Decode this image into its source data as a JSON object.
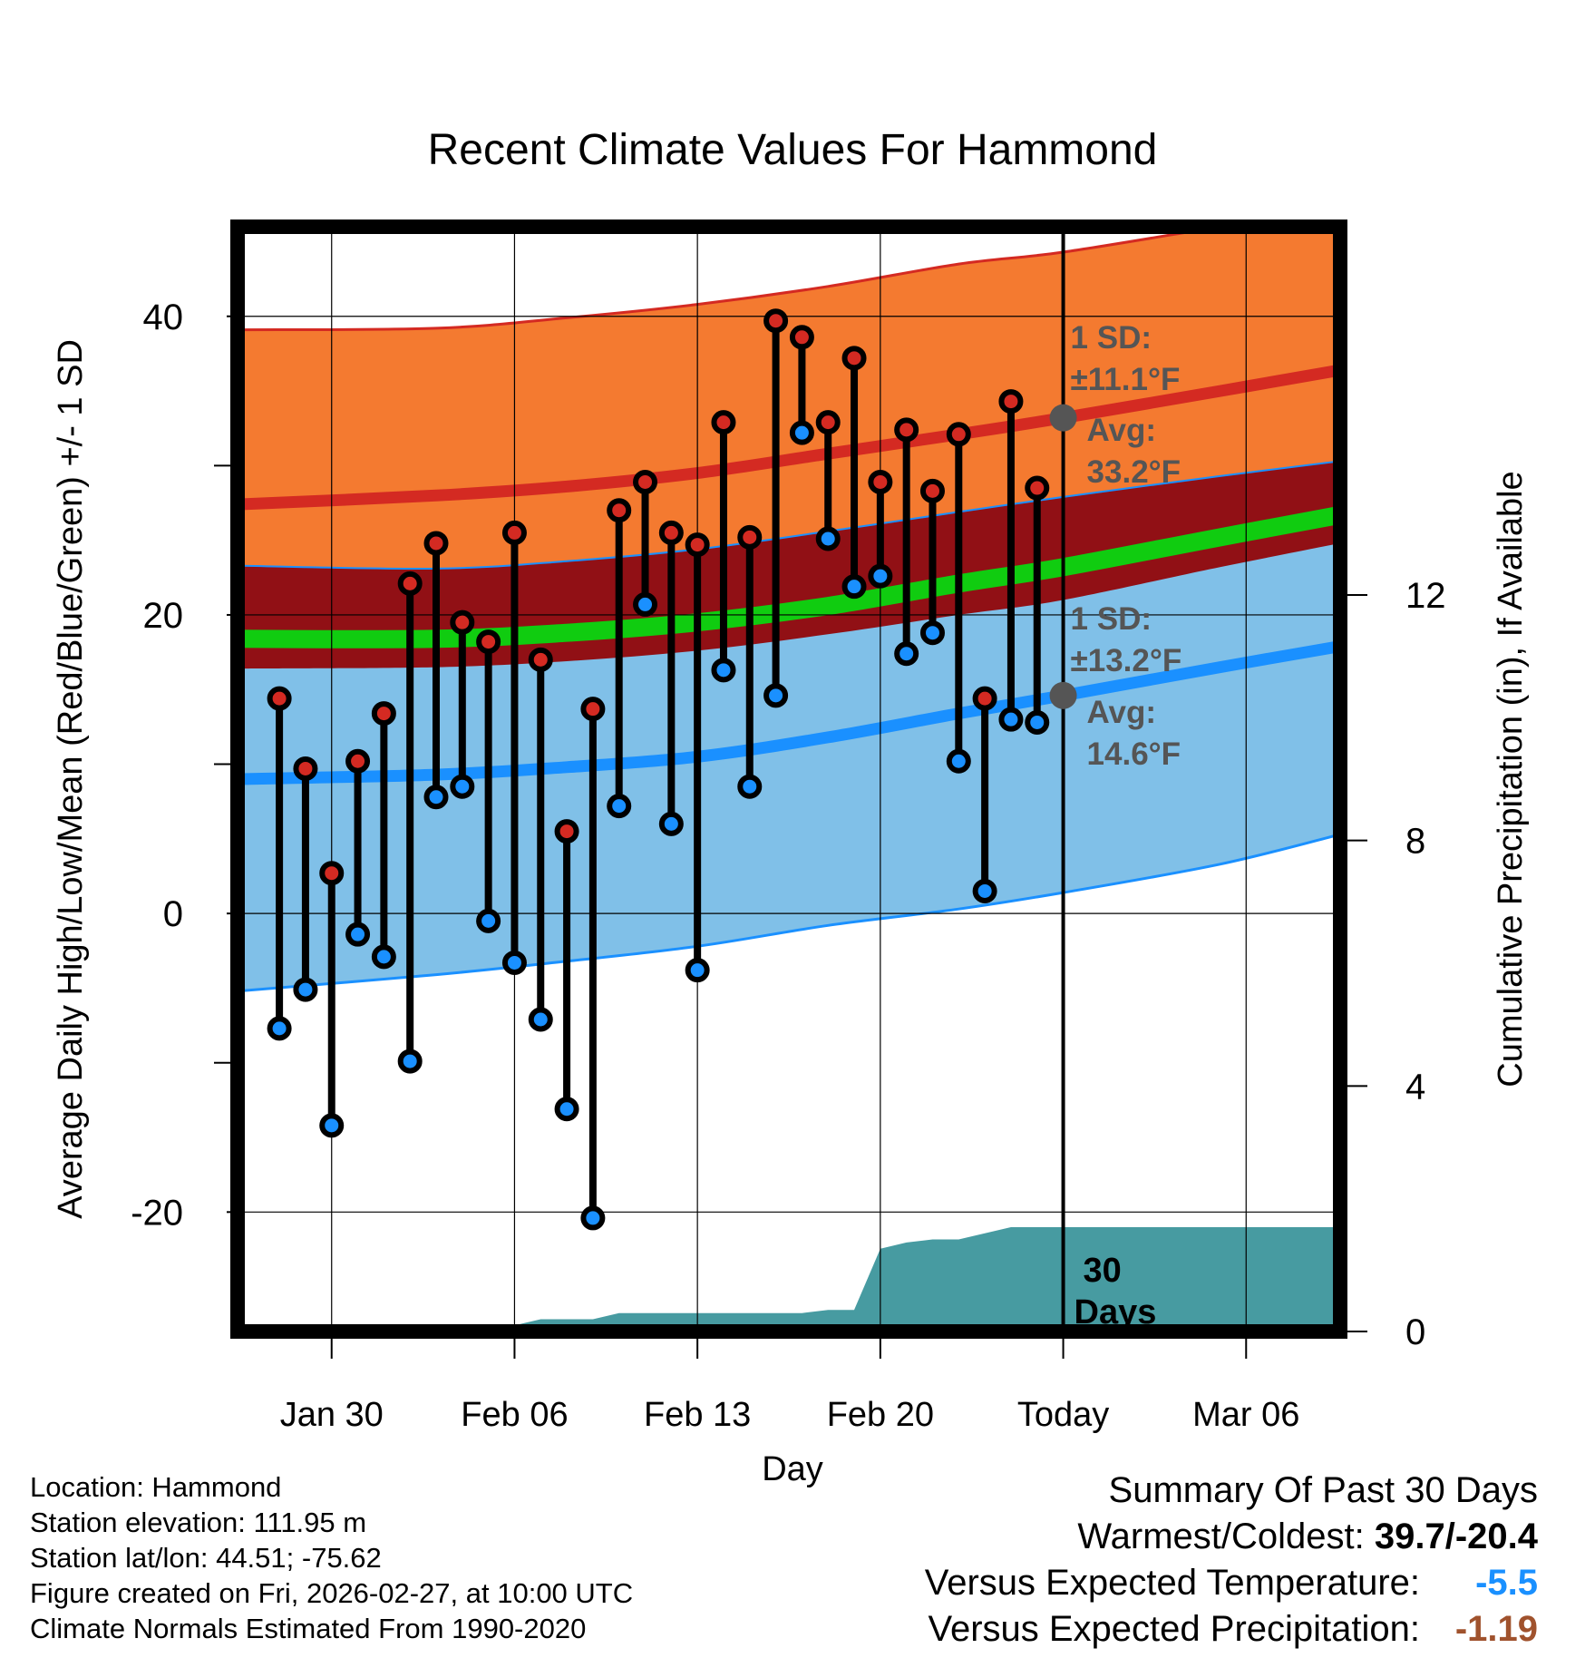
{
  "colors": {
    "orange_band": "#f47a30",
    "mean_band": "#911015",
    "green_line": "#10cc10",
    "blue_band": "#80c0e8",
    "blue_line": "#1a90ff",
    "red_line": "#d42a22",
    "precip_fill": "#479ba1",
    "marker_red": "#d42a22",
    "marker_blue": "#1a90ff",
    "annotation_gray": "#555555",
    "warm_value": "#1a90ff",
    "precip_value": "#a0522d"
  },
  "chart_data": {
    "type": "line",
    "title": "Recent Climate Values For Hammond",
    "xlabel": "Day",
    "ylabel": "Average Daily High/Low/Mean (Red/Blue/Green) +/- 1 SD",
    "y2label": "Cumulative Precipitation (in), If Available",
    "xlim": [
      -2.6,
      39.6
    ],
    "ylim": [
      -28,
      46
    ],
    "y2lim": [
      0,
      18
    ],
    "x_ticks": [
      {
        "x": 1,
        "label": "Jan 30"
      },
      {
        "x": 8,
        "label": "Feb 06"
      },
      {
        "x": 15,
        "label": "Feb 13"
      },
      {
        "x": 22,
        "label": "Feb 20"
      },
      {
        "x": 29,
        "label": "Today"
      },
      {
        "x": 36,
        "label": "Mar 06"
      }
    ],
    "y_ticks": [
      {
        "y": 40,
        "label": "40"
      },
      {
        "y": 20,
        "label": "20"
      },
      {
        "y": 0,
        "label": "0"
      },
      {
        "y": -20,
        "label": "-20"
      }
    ],
    "y_minor_ticks": [
      30,
      10,
      -10
    ],
    "y2_ticks": [
      {
        "y": 0,
        "label": "0"
      },
      {
        "y": 4,
        "label": "4"
      },
      {
        "y": 8,
        "label": "8"
      },
      {
        "y": 12,
        "label": "12"
      }
    ],
    "today_x": 29,
    "normals": {
      "x": [
        -2.6,
        5,
        10,
        15,
        20,
        25,
        29,
        35,
        39.6
      ],
      "high_plus_sd": [
        39.1,
        39.2,
        39.9,
        40.8,
        42.0,
        43.5,
        44.3,
        46.0,
        47.3
      ],
      "high_avg": [
        27.4,
        28.0,
        28.6,
        29.5,
        30.8,
        32.1,
        33.2,
        35.0,
        36.4
      ],
      "mean_upper": [
        23.3,
        23.1,
        23.6,
        24.4,
        25.6,
        26.9,
        27.9,
        29.3,
        30.3
      ],
      "mean_avg": [
        18.4,
        18.4,
        18.8,
        19.5,
        20.6,
        22.1,
        23.2,
        25.2,
        26.7
      ],
      "mean_lower": [
        16.4,
        16.5,
        16.9,
        17.6,
        18.7,
        20.0,
        21.0,
        23.2,
        24.8
      ],
      "low_avg": [
        9.0,
        9.3,
        9.8,
        10.5,
        11.8,
        13.4,
        14.6,
        16.5,
        17.9
      ],
      "low_minus_sd": [
        -5.2,
        -4.1,
        -3.2,
        -2.2,
        -0.8,
        0.3,
        1.4,
        3.3,
        5.3
      ]
    },
    "daily": {
      "x": [
        -1,
        0,
        1,
        2,
        3,
        4,
        5,
        6,
        7,
        8,
        9,
        10,
        11,
        12,
        13,
        14,
        15,
        16,
        17,
        18,
        19,
        20,
        21,
        22,
        23,
        24,
        25,
        26,
        27,
        28
      ],
      "high": [
        14.4,
        9.7,
        2.7,
        10.2,
        13.4,
        22.1,
        24.8,
        19.5,
        18.2,
        25.5,
        17.0,
        5.5,
        13.7,
        27.0,
        28.9,
        25.5,
        24.7,
        32.9,
        25.2,
        39.7,
        38.6,
        32.9,
        37.2,
        28.9,
        32.4,
        28.3,
        32.1,
        14.4,
        34.3,
        28.5
      ],
      "low": [
        -7.7,
        -5.1,
        -14.2,
        -1.4,
        -2.9,
        -9.9,
        7.8,
        8.5,
        -0.5,
        -3.3,
        -7.1,
        -13.1,
        -20.4,
        7.2,
        20.7,
        6.0,
        -3.8,
        16.3,
        8.5,
        14.6,
        32.2,
        25.1,
        21.9,
        22.6,
        17.4,
        18.8,
        10.2,
        1.5,
        13.0,
        12.8
      ]
    },
    "precipitation": {
      "x": [
        -2.6,
        4.0,
        7.0,
        8.0,
        9.0,
        11.0,
        12.0,
        13.0,
        14.0,
        15.0,
        16.0,
        17.0,
        18.0,
        19.0,
        20.0,
        21.0,
        22.0,
        23.0,
        24.0,
        25.0,
        26.0,
        27.0,
        28.0,
        29.0,
        39.6
      ],
      "y": [
        0.0,
        0.0,
        0.0,
        0.1,
        0.2,
        0.2,
        0.3,
        0.3,
        0.3,
        0.3,
        0.3,
        0.3,
        0.3,
        0.3,
        0.35,
        0.35,
        1.35,
        1.45,
        1.5,
        1.5,
        1.6,
        1.7,
        1.7,
        1.7,
        1.7
      ]
    },
    "annotations": {
      "high_sd_title": "1 SD:",
      "high_sd_value": "±11.1°F",
      "high_avg_title": "Avg:",
      "high_avg_value": "33.2°F",
      "low_sd_title": "1 SD:",
      "low_sd_value": "±13.2°F",
      "low_avg_title": "Avg:",
      "low_avg_value": "14.6°F",
      "days_line1": "30",
      "days_line2": "Days"
    }
  },
  "footer": {
    "location": "Location: Hammond",
    "elevation": "Station elevation: 111.95 m",
    "latlon": "Station lat/lon: 44.51; -75.62",
    "created": "Figure created on Fri, 2026-02-27, at 10:00 UTC",
    "normals": "Climate Normals Estimated From 1990-2020"
  },
  "summary": {
    "heading": "Summary Of Past 30 Days",
    "warm_cold_label": "Warmest/Coldest: ",
    "warm_cold_value": "39.7/-20.4",
    "temp_label": "Versus Expected Temperature:",
    "temp_value": "-5.5",
    "precip_label": "Versus Expected Precipitation:",
    "precip_value": "-1.19"
  }
}
